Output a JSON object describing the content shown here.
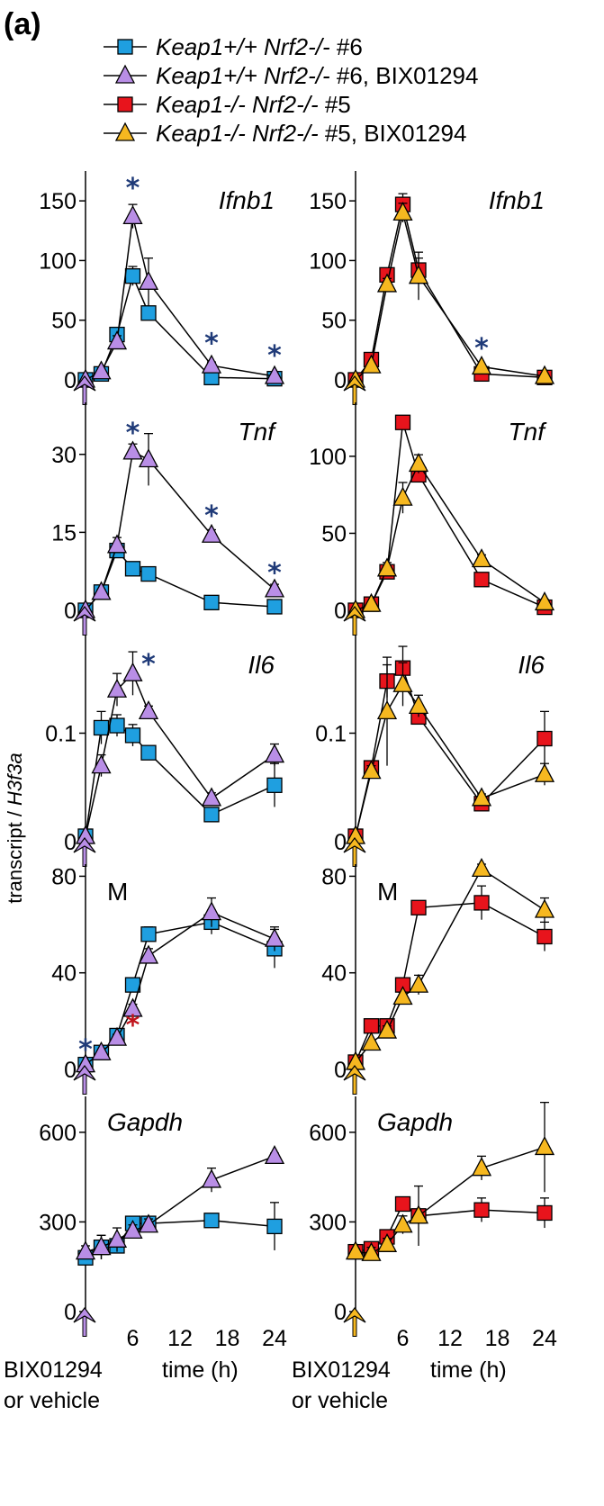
{
  "figure": {
    "panel_label": "(a)",
    "ylabel_prefix": "transcript / ",
    "ylabel_gene": "H3f3a",
    "xlabel": "time (h)",
    "treatment_label_line1": "BIX01294",
    "treatment_label_line2": "or vehicle",
    "legend": [
      {
        "gene_text": "Keap1+/+ Nrf2-/-",
        "suffix": " #6",
        "marker": "square",
        "color": "#1f9fe0"
      },
      {
        "gene_text": "Keap1+/+ Nrf2-/-",
        "suffix": " #6, BIX01294",
        "marker": "triangle",
        "color": "#b98ee6"
      },
      {
        "gene_text": "Keap1-/- Nrf2-/-",
        "suffix": " #5",
        "marker": "square",
        "color": "#e8141c"
      },
      {
        "gene_text": "Keap1-/- Nrf2-/-",
        "suffix": " #5, BIX01294",
        "marker": "triangle",
        "color": "#f6b820"
      }
    ],
    "colors": {
      "wt_vehicle": "#1f9fe0",
      "wt_bix": "#b98ee6",
      "ko_vehicle": "#e8141c",
      "ko_bix": "#f6b820",
      "star_blue": "#1f3a78",
      "star_red": "#c0141c"
    }
  },
  "chart_data": [
    {
      "type": "line",
      "gene": "Ifnb1",
      "column": "left",
      "row": 0,
      "x": [
        0,
        2,
        4,
        6,
        8,
        16,
        24
      ],
      "ylim": [
        0,
        175
      ],
      "yticks": [
        0,
        50,
        100,
        150
      ],
      "series": [
        {
          "name": "Keap1+/+ Nrf2-/- #6",
          "marker": "square",
          "color": "#1f9fe0",
          "values": [
            0,
            5,
            38,
            87,
            56,
            2,
            1
          ],
          "err": [
            0,
            1,
            5,
            8,
            3,
            1,
            1
          ]
        },
        {
          "name": "Keap1+/+ Nrf2-/- #6, BIX01294",
          "marker": "triangle",
          "color": "#b98ee6",
          "values": [
            0,
            7,
            32,
            137,
            82,
            12,
            3
          ],
          "err": [
            0,
            2,
            5,
            10,
            20,
            3,
            1
          ]
        }
      ],
      "stars": [
        {
          "x": 6,
          "y": 162,
          "color": "#1f3a78"
        },
        {
          "x": 16,
          "y": 32,
          "color": "#1f3a78"
        },
        {
          "x": 24,
          "y": 22,
          "color": "#1f3a78"
        }
      ]
    },
    {
      "type": "line",
      "gene": "Ifnb1",
      "column": "right",
      "row": 0,
      "x": [
        0,
        2,
        4,
        6,
        8,
        16,
        24
      ],
      "ylim": [
        0,
        175
      ],
      "yticks": [
        0,
        50,
        100,
        150
      ],
      "series": [
        {
          "name": "Keap1-/- Nrf2-/- #5",
          "marker": "square",
          "color": "#e8141c",
          "values": [
            0,
            17,
            88,
            147,
            92,
            5,
            2
          ],
          "err": [
            0,
            2,
            5,
            9,
            10,
            1,
            1
          ]
        },
        {
          "name": "Keap1-/- Nrf2-/- #5, BIX01294",
          "marker": "triangle",
          "color": "#f6b820",
          "values": [
            0,
            12,
            80,
            140,
            87,
            11,
            3
          ],
          "err": [
            0,
            2,
            5,
            8,
            20,
            2,
            1
          ]
        }
      ],
      "stars": [
        {
          "x": 16,
          "y": 28,
          "color": "#1f3a78"
        }
      ]
    },
    {
      "type": "line",
      "gene": "Tnf",
      "column": "left",
      "row": 1,
      "x": [
        0,
        2,
        4,
        6,
        8,
        16,
        24
      ],
      "ylim": [
        0,
        40
      ],
      "yticks": [
        0,
        15,
        30
      ],
      "series": [
        {
          "name": "Keap1+/+ Nrf2-/- #6",
          "marker": "square",
          "color": "#1f9fe0",
          "values": [
            0,
            3.5,
            11.5,
            8,
            7,
            1.5,
            0.7
          ],
          "err": [
            0,
            0.5,
            1,
            0.5,
            0.5,
            0.3,
            0.3
          ]
        },
        {
          "name": "Keap1+/+ Nrf2-/- #6, BIX01294",
          "marker": "triangle",
          "color": "#b98ee6",
          "values": [
            0,
            3.5,
            12.5,
            30.5,
            29,
            14.5,
            4
          ],
          "err": [
            0,
            0.5,
            1.5,
            1.5,
            5,
            1,
            1
          ]
        }
      ],
      "stars": [
        {
          "x": 6,
          "y": 34.5,
          "color": "#1f3a78"
        },
        {
          "x": 16,
          "y": 18.5,
          "color": "#1f3a78"
        },
        {
          "x": 24,
          "y": 7.5,
          "color": "#1f3a78"
        }
      ]
    },
    {
      "type": "line",
      "gene": "Tnf",
      "column": "right",
      "row": 1,
      "x": [
        0,
        2,
        4,
        6,
        8,
        16,
        24
      ],
      "ylim": [
        0,
        135
      ],
      "yticks": [
        0,
        50,
        100
      ],
      "series": [
        {
          "name": "Keap1-/- Nrf2-/- #5",
          "marker": "square",
          "color": "#e8141c",
          "values": [
            0,
            4,
            25,
            122,
            88,
            20,
            2
          ],
          "err": [
            0,
            1,
            3,
            3,
            5,
            2,
            1
          ]
        },
        {
          "name": "Keap1-/- Nrf2-/- #5, BIX01294",
          "marker": "triangle",
          "color": "#f6b820",
          "values": [
            0,
            4,
            27,
            73,
            95,
            33,
            5
          ],
          "err": [
            0,
            1,
            4,
            10,
            6,
            3,
            2
          ]
        }
      ],
      "stars": []
    },
    {
      "type": "line",
      "gene": "Il6",
      "column": "left",
      "row": 2,
      "x": [
        0,
        2,
        4,
        6,
        8,
        16,
        24
      ],
      "ylim": [
        0,
        0.19
      ],
      "yticks": [
        0,
        0.1
      ],
      "yticklabels": [
        "0",
        "0.1"
      ],
      "series": [
        {
          "name": "Keap1+/+ Nrf2-/- #6",
          "marker": "square",
          "color": "#1f9fe0",
          "values": [
            0.005,
            0.105,
            0.107,
            0.098,
            0.082,
            0.025,
            0.052
          ],
          "err": [
            0.002,
            0.015,
            0.01,
            0.01,
            0.005,
            0.005,
            0.02
          ]
        },
        {
          "name": "Keap1+/+ Nrf2-/- #6, BIX01294",
          "marker": "triangle",
          "color": "#b98ee6",
          "values": [
            0.005,
            0.07,
            0.14,
            0.155,
            0.12,
            0.04,
            0.08
          ],
          "err": [
            0.002,
            0.01,
            0.015,
            0.02,
            0.005,
            0.005,
            0.01
          ]
        }
      ],
      "stars": [
        {
          "x": 8,
          "y": 0.165,
          "color": "#1f3a78"
        }
      ]
    },
    {
      "type": "line",
      "gene": "Il6",
      "column": "right",
      "row": 2,
      "x": [
        0,
        2,
        4,
        6,
        8,
        16,
        24
      ],
      "ylim": [
        0,
        0.19
      ],
      "yticks": [
        0,
        0.1
      ],
      "yticklabels": [
        "0",
        "0.1"
      ],
      "series": [
        {
          "name": "Keap1-/- Nrf2-/- #5",
          "marker": "square",
          "color": "#e8141c",
          "values": [
            0.005,
            0.068,
            0.148,
            0.16,
            0.115,
            0.035,
            0.095
          ],
          "err": [
            0.002,
            0.005,
            0.015,
            0.02,
            0.005,
            0.004,
            0.025
          ]
        },
        {
          "name": "Keap1-/- Nrf2-/- #5, BIX01294",
          "marker": "triangle",
          "color": "#f6b820",
          "values": [
            0.005,
            0.065,
            0.12,
            0.145,
            0.125,
            0.04,
            0.062
          ],
          "err": [
            0.002,
            0.005,
            0.05,
            0.02,
            0.01,
            0.004,
            0.01
          ]
        }
      ],
      "stars": []
    },
    {
      "type": "line",
      "gene": "M",
      "column": "left",
      "row": 3,
      "x": [
        0,
        2,
        4,
        6,
        8,
        16,
        24
      ],
      "ylim": [
        0,
        85
      ],
      "yticks": [
        0,
        40,
        80
      ],
      "series": [
        {
          "name": "Keap1+/+ Nrf2-/- #6",
          "marker": "square",
          "color": "#1f9fe0",
          "values": [
            2,
            7,
            14,
            35,
            56,
            61,
            50
          ],
          "err": [
            0.5,
            1,
            2,
            2,
            3,
            5,
            8
          ]
        },
        {
          "name": "Keap1+/+ Nrf2-/- #6, BIX01294",
          "marker": "triangle",
          "color": "#b98ee6",
          "values": [
            2,
            7,
            13,
            25,
            47,
            65,
            54
          ],
          "err": [
            0.5,
            1,
            1.5,
            2,
            3,
            6,
            5
          ]
        }
      ],
      "stars": [
        {
          "x": 0,
          "y": 9,
          "color": "#1f3a78"
        },
        {
          "x": 6,
          "y": 19,
          "color": "#c0141c"
        }
      ]
    },
    {
      "type": "line",
      "gene": "M",
      "column": "right",
      "row": 3,
      "x": [
        0,
        2,
        4,
        6,
        8,
        16,
        24
      ],
      "ylim": [
        0,
        85
      ],
      "yticks": [
        0,
        40,
        80
      ],
      "series": [
        {
          "name": "Keap1-/- Nrf2-/- #5",
          "marker": "square",
          "color": "#e8141c",
          "values": [
            3,
            18,
            18,
            35,
            67,
            69,
            55
          ],
          "err": [
            0.5,
            2,
            2,
            2,
            1,
            7,
            6
          ]
        },
        {
          "name": "Keap1-/- Nrf2-/- #5, BIX01294",
          "marker": "triangle",
          "color": "#f6b820",
          "values": [
            3,
            11,
            16,
            30,
            35,
            83,
            66
          ],
          "err": [
            0.5,
            1,
            2,
            2,
            4,
            2,
            5
          ]
        }
      ],
      "stars": []
    },
    {
      "type": "line",
      "gene": "Gapdh",
      "column": "left",
      "row": 4,
      "x": [
        0,
        2,
        4,
        6,
        8,
        16,
        24
      ],
      "ylim": [
        0,
        720
      ],
      "yticks": [
        0,
        300,
        600
      ],
      "series": [
        {
          "name": "Keap1+/+ Nrf2-/- #6",
          "marker": "square",
          "color": "#1f9fe0",
          "values": [
            180,
            215,
            220,
            295,
            295,
            305,
            285
          ],
          "err": [
            20,
            40,
            20,
            10,
            10,
            10,
            80
          ]
        },
        {
          "name": "Keap1+/+ Nrf2-/- #6, BIX01294",
          "marker": "triangle",
          "color": "#b98ee6",
          "values": [
            200,
            215,
            240,
            270,
            290,
            440,
            520
          ],
          "err": [
            20,
            40,
            40,
            20,
            20,
            40,
            10
          ]
        }
      ],
      "stars": []
    },
    {
      "type": "line",
      "gene": "Gapdh",
      "column": "right",
      "row": 4,
      "x": [
        0,
        2,
        4,
        6,
        8,
        16,
        24
      ],
      "ylim": [
        0,
        720
      ],
      "yticks": [
        0,
        300,
        600
      ],
      "series": [
        {
          "name": "Keap1-/- Nrf2-/- #5",
          "marker": "square",
          "color": "#e8141c",
          "values": [
            200,
            210,
            250,
            360,
            320,
            340,
            330
          ],
          "err": [
            10,
            20,
            20,
            20,
            20,
            40,
            50
          ]
        },
        {
          "name": "Keap1-/- Nrf2-/- #5, BIX01294",
          "marker": "triangle",
          "color": "#f6b820",
          "values": [
            200,
            195,
            225,
            290,
            320,
            480,
            550
          ],
          "err": [
            10,
            20,
            20,
            30,
            100,
            40,
            150
          ]
        }
      ],
      "stars": []
    }
  ],
  "xaxis": {
    "ticks": [
      6,
      12,
      18,
      24
    ],
    "tick_labels": [
      "6",
      "12",
      "18",
      "24"
    ]
  }
}
